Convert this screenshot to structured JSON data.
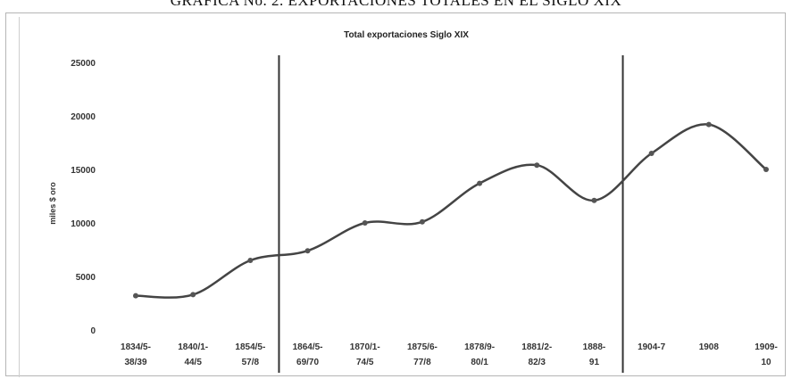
{
  "page": {
    "caption": "GRAFICA No. 2. EXPORTACIONES TOTALES EN EL SIGLO XIX"
  },
  "chart_data": {
    "type": "line",
    "title": "Total exportaciones Siglo XIX",
    "xlabel": "",
    "ylabel": "miles $ oro",
    "ylim": [
      0,
      25000
    ],
    "yticks": [
      0,
      5000,
      10000,
      15000,
      20000,
      25000
    ],
    "ytick_labels": [
      "0",
      "5000",
      "10000",
      "15000",
      "20000",
      "25000"
    ],
    "grid": false,
    "categories": [
      [
        "1834/5-",
        "38/39"
      ],
      [
        "1840/1-",
        "44/5"
      ],
      [
        "1854/5-",
        "57/8"
      ],
      [
        "1864/5-",
        "69/70"
      ],
      [
        "1870/1-",
        "74/5"
      ],
      [
        "1875/6-",
        "77/8"
      ],
      [
        "1878/9-",
        "80/1"
      ],
      [
        "1881/2-",
        "82/3"
      ],
      [
        "1888-",
        "91"
      ],
      [
        "1904-7",
        ""
      ],
      [
        "1908",
        ""
      ],
      [
        "1909-",
        "10"
      ]
    ],
    "values": [
      3200,
      3300,
      6500,
      7400,
      10000,
      10100,
      13700,
      15400,
      12100,
      16500,
      19200,
      15000
    ],
    "vertical_markers_after_category": [
      2,
      8
    ],
    "line_color": "#444444",
    "marker_color": "#555555",
    "divider_color": "#333333"
  }
}
